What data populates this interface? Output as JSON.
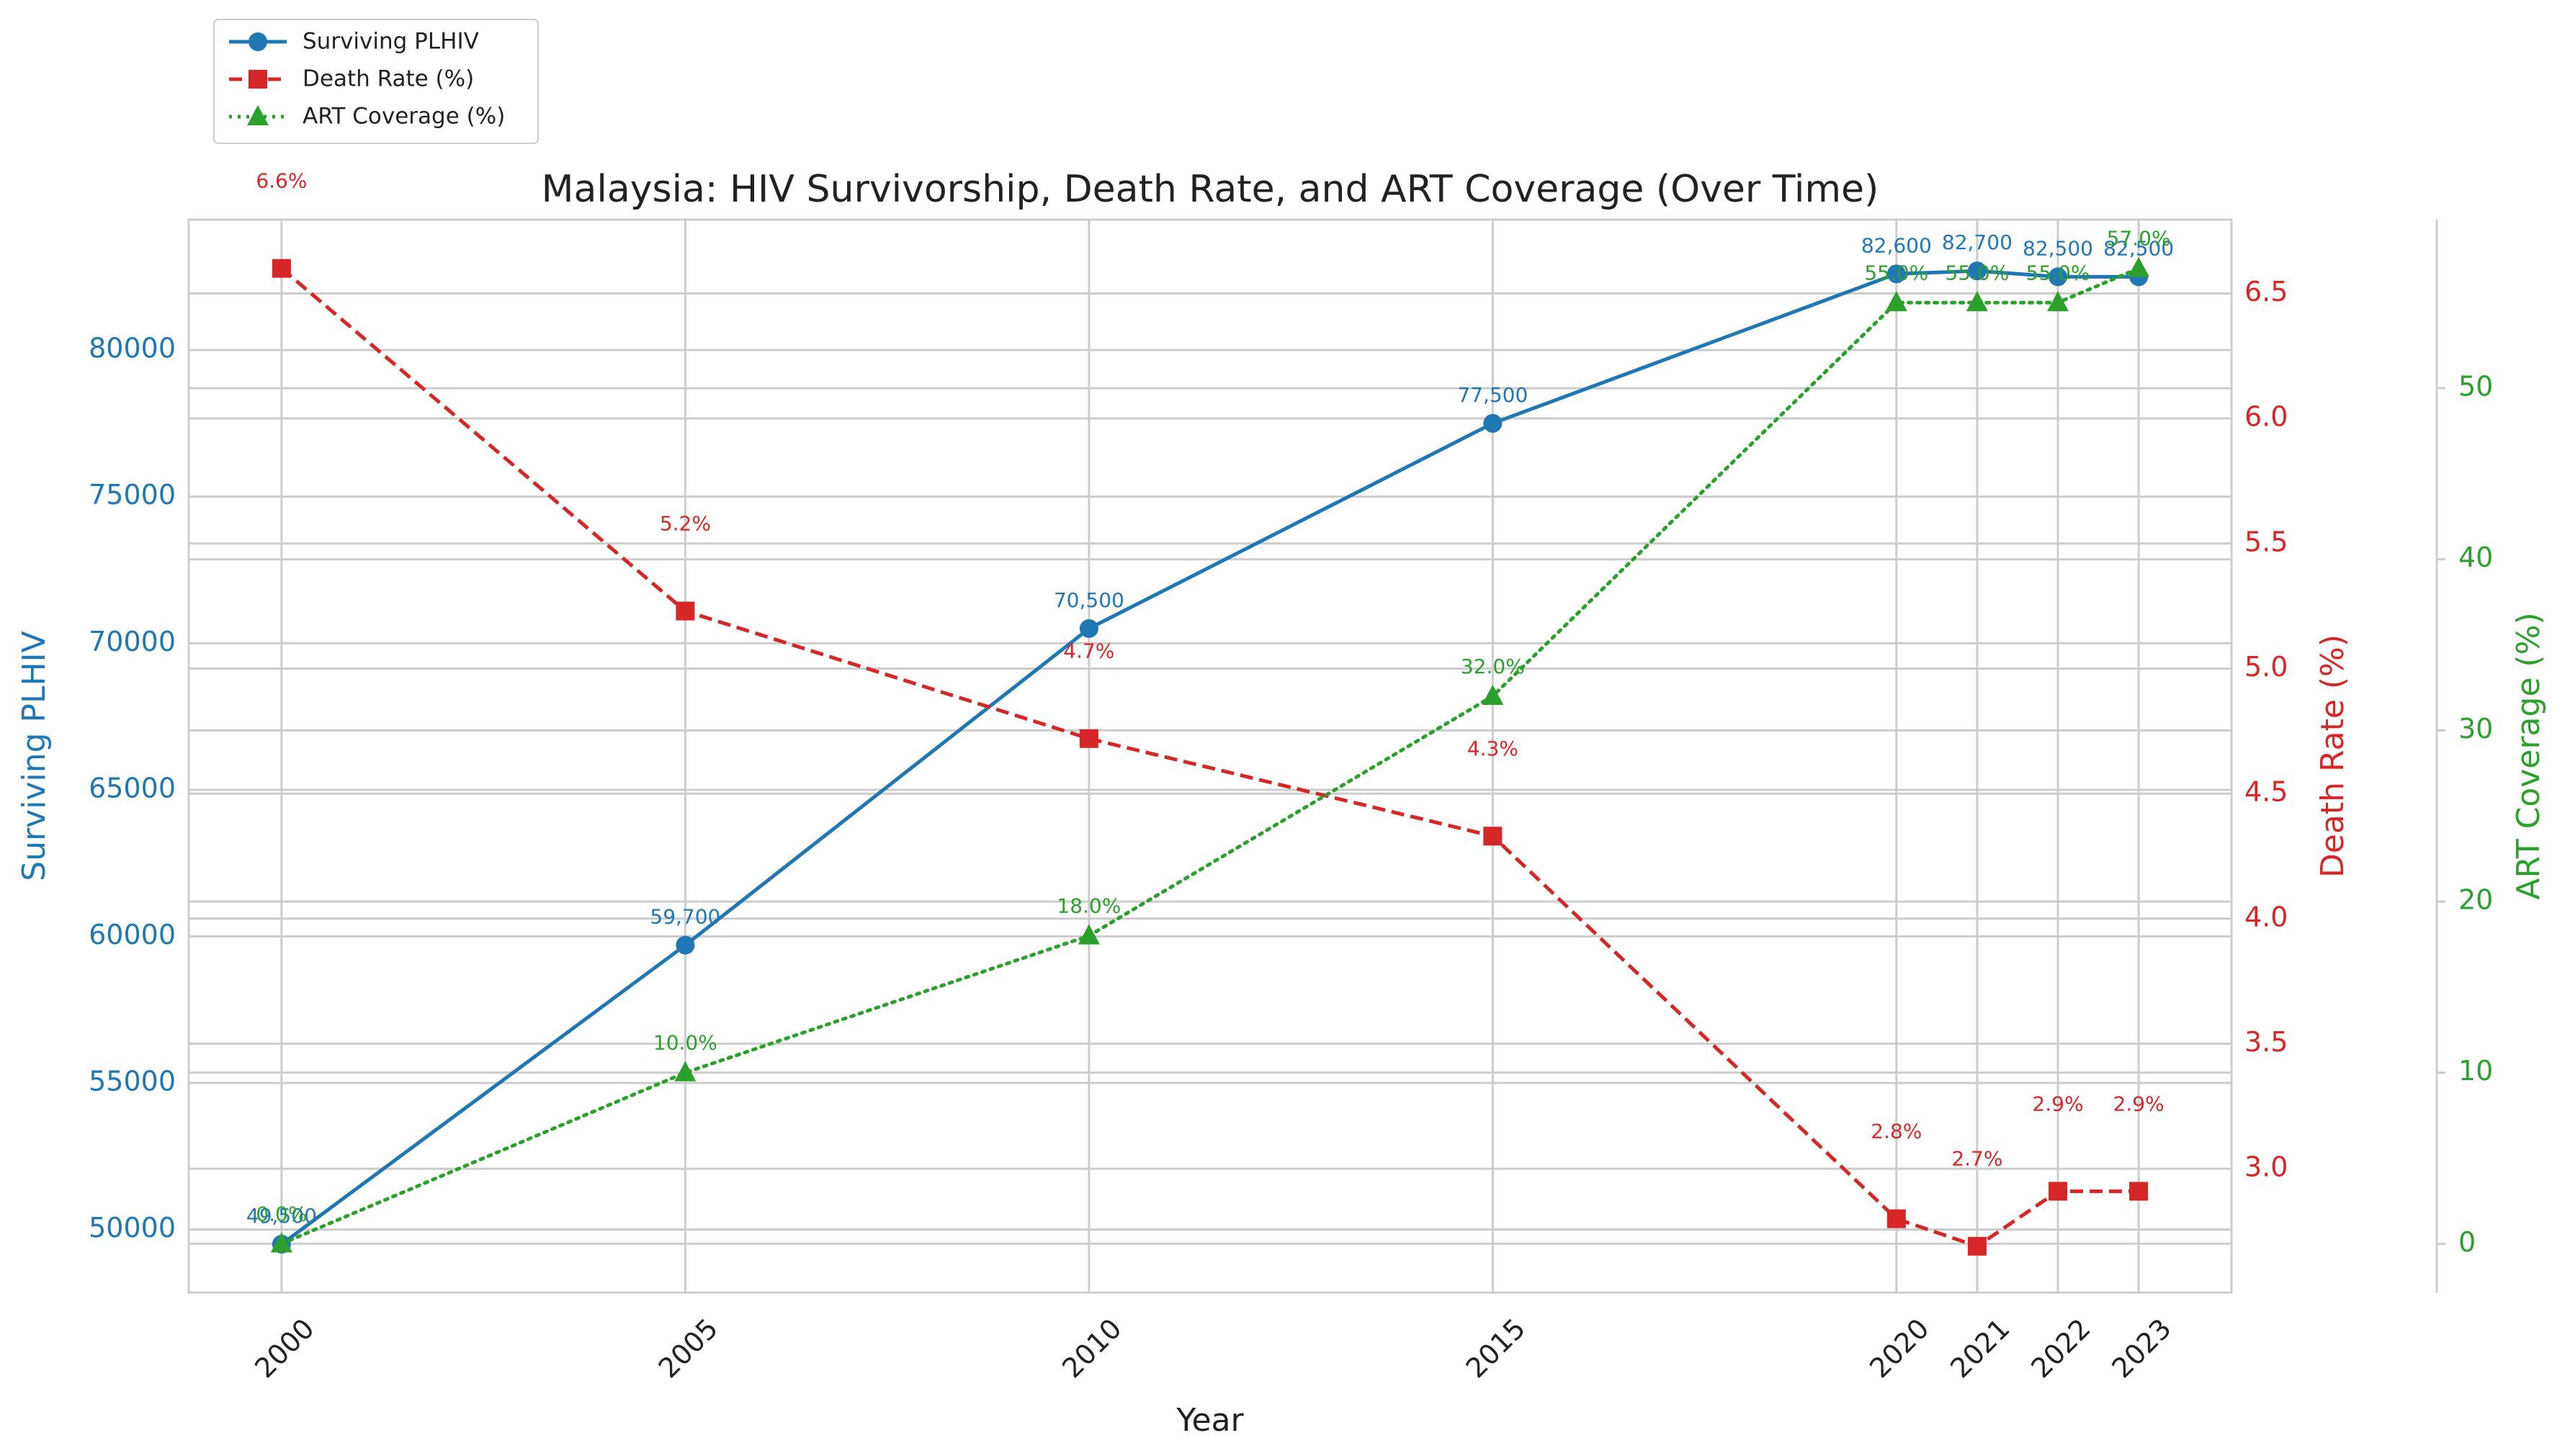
{
  "chart_data": {
    "type": "line",
    "title": "Malaysia: HIV Survivorship, Death Rate, and ART Coverage (Over Time)",
    "xlabel": "Year",
    "x": [
      2000,
      2005,
      2010,
      2015,
      2020,
      2021,
      2022,
      2023
    ],
    "x_tick_labels": [
      "2000",
      "2005",
      "2010",
      "2015",
      "2020",
      "2021",
      "2022",
      "2023"
    ],
    "xlim": [
      1998.85,
      2024.15
    ],
    "grid": true,
    "legend_position": "top-left (outside plot)",
    "axes": {
      "left": {
        "label": "Surviving PLHIV",
        "color": "#1f77b4",
        "ylim": [
          47850,
          84450
        ],
        "ticks": [
          50000,
          55000,
          60000,
          65000,
          70000,
          75000,
          80000
        ],
        "tick_labels": [
          "50000",
          "55000",
          "60000",
          "65000",
          "70000",
          "75000",
          "80000"
        ]
      },
      "right": {
        "label": "Death Rate (%)",
        "color": "#d62728",
        "ylim": [
          2.505,
          6.795
        ],
        "ticks": [
          3.0,
          3.5,
          4.0,
          4.5,
          5.0,
          5.5,
          6.0,
          6.5
        ],
        "tick_labels": [
          "3.0",
          "3.5",
          "4.0",
          "4.5",
          "5.0",
          "5.5",
          "6.0",
          "6.5"
        ]
      },
      "right2": {
        "label": "ART Coverage (%)",
        "color": "#2ca02c",
        "ylim": [
          -2.85,
          59.85
        ],
        "ticks": [
          0,
          10,
          20,
          30,
          40,
          50
        ],
        "tick_labels": [
          "0",
          "10",
          "20",
          "30",
          "40",
          "50"
        ]
      }
    },
    "series": [
      {
        "name": "Surviving PLHIV",
        "axis": "left",
        "color": "#1f77b4",
        "linestyle": "solid",
        "marker": "circle",
        "values": [
          49500,
          59700,
          70500,
          77500,
          82600,
          82700,
          82500,
          82500
        ],
        "labels": [
          "49,500",
          "59,700",
          "70,500",
          "77,500",
          "82,600",
          "82,700",
          "82,500",
          "82,500"
        ]
      },
      {
        "name": "Death Rate (%)",
        "axis": "right",
        "color": "#d62728",
        "linestyle": "dashed",
        "marker": "square",
        "values": [
          6.6,
          5.23,
          4.72,
          4.33,
          2.8,
          2.69,
          2.91,
          2.91
        ],
        "labels": [
          "6.6%",
          "5.2%",
          "4.7%",
          "4.3%",
          "2.8%",
          "2.7%",
          "2.9%",
          "2.9%"
        ]
      },
      {
        "name": "ART Coverage (%)",
        "axis": "right2",
        "color": "#2ca02c",
        "linestyle": "dotted",
        "marker": "triangle",
        "values": [
          0,
          10,
          18,
          32,
          55,
          55,
          55,
          57
        ],
        "labels": [
          "0.0%",
          "10.0%",
          "18.0%",
          "32.0%",
          "55.0%",
          "55.0%",
          "55.0%",
          "57.0%"
        ]
      }
    ]
  }
}
